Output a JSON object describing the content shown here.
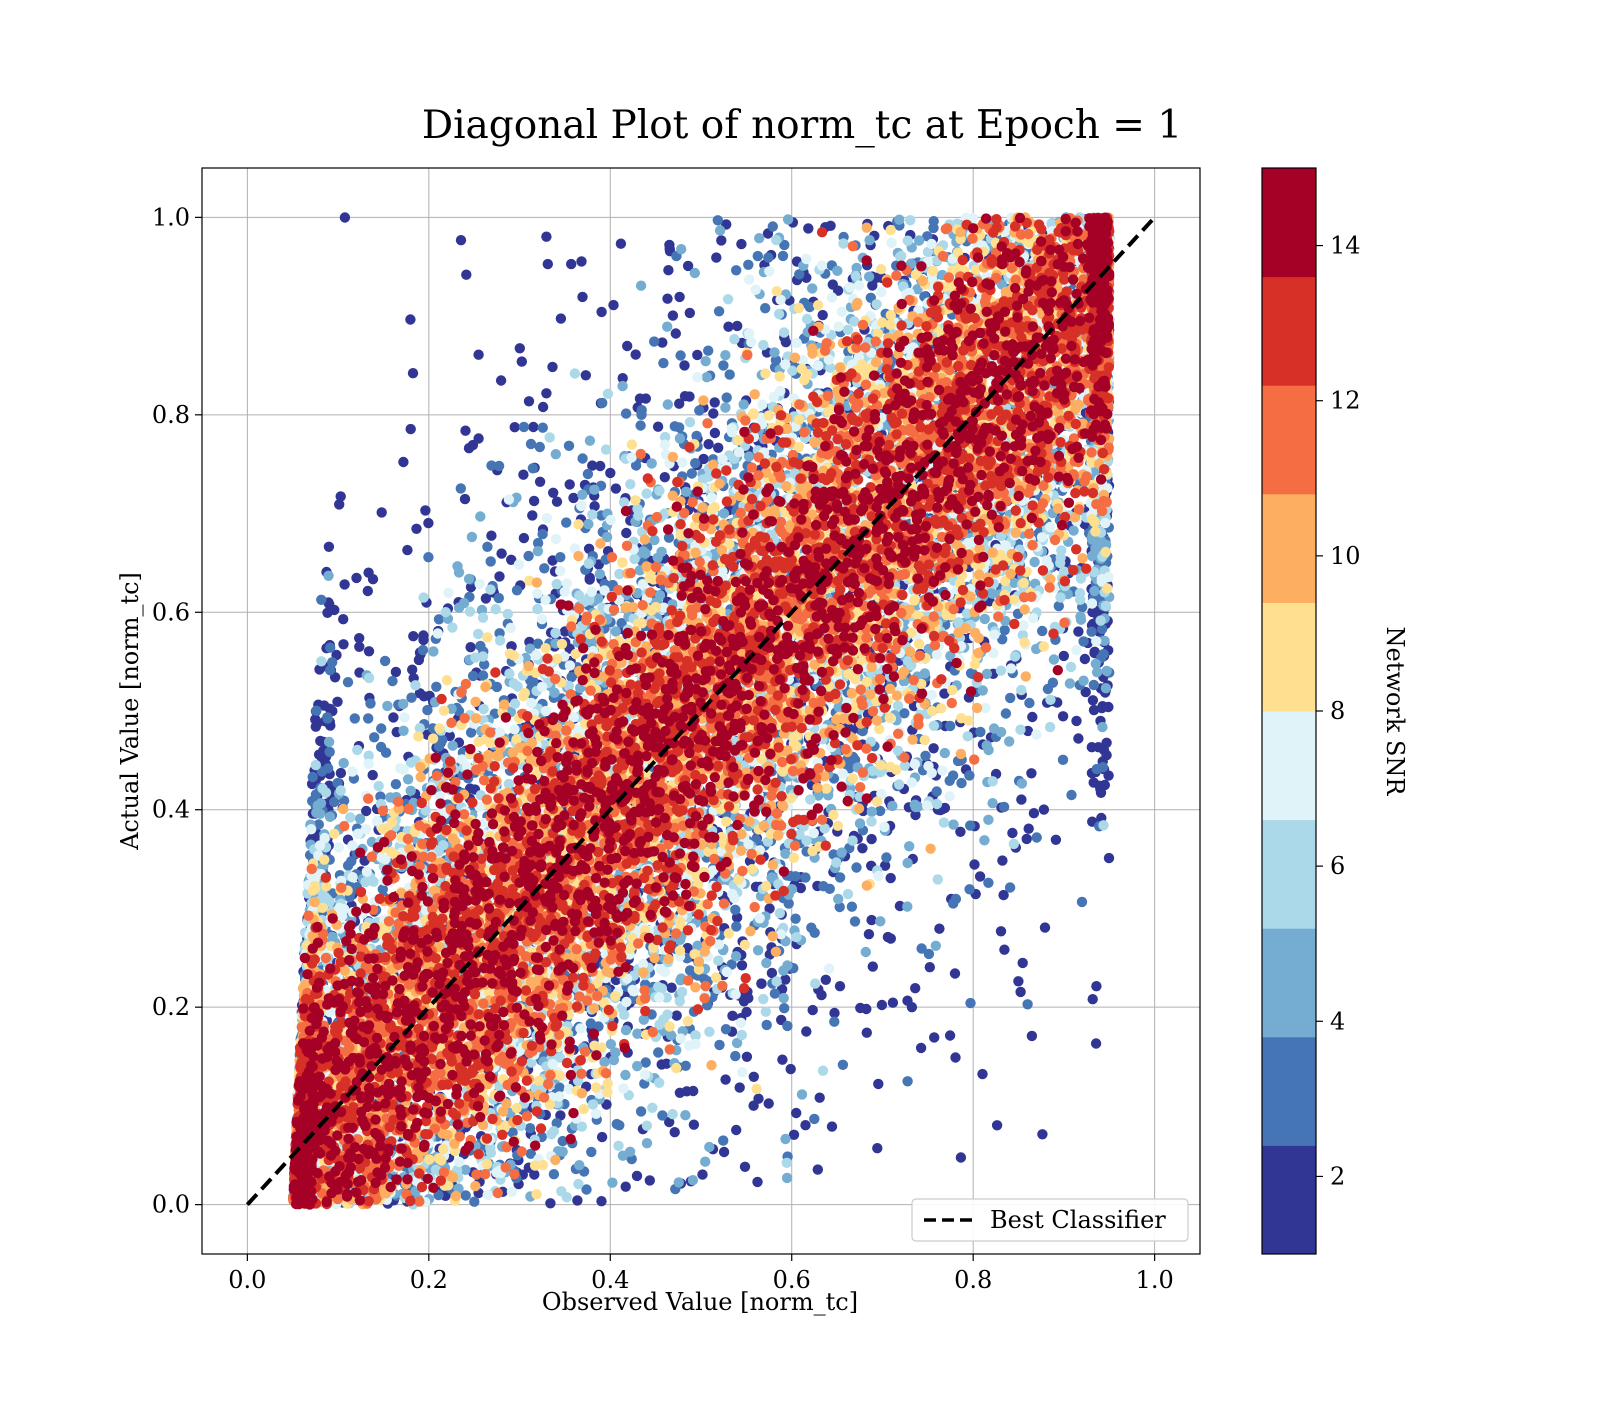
{
  "chart_data": {
    "type": "scatter",
    "title": "Diagonal Plot of norm_tc at Epoch = 1",
    "xlabel": "Observed Value [norm_tc]",
    "ylabel": "Actual Value [norm_tc]",
    "xlim": [
      -0.05,
      1.05
    ],
    "ylim": [
      -0.05,
      1.05
    ],
    "xticks": [
      "0.0",
      "0.2",
      "0.4",
      "0.6",
      "0.8",
      "1.0"
    ],
    "yticks": [
      "0.0",
      "0.2",
      "0.4",
      "0.6",
      "0.8",
      "1.0"
    ],
    "grid": true,
    "legend": {
      "placement": "lower-right",
      "entries": [
        "Best Classifier"
      ]
    },
    "reference_line": {
      "name": "Best Classifier",
      "style": "dashed",
      "color": "#000000",
      "x": [
        0,
        1
      ],
      "y": [
        0,
        1
      ]
    },
    "colorbar": {
      "label": "Network SNR",
      "range": [
        1,
        15
      ],
      "ticks": [
        "2",
        "4",
        "6",
        "8",
        "10",
        "12",
        "14"
      ],
      "colors": [
        "#313695",
        "#4575b4",
        "#74add1",
        "#abd9e9",
        "#e0f3f8",
        "#fee090",
        "#fdae61",
        "#f46d43",
        "#d73027",
        "#a50026"
      ]
    },
    "scatter_description": {
      "x_range_at_y0": [
        0.05,
        0.95
      ],
      "x_range_at_y1": [
        0.1,
        0.95
      ],
      "high_snr_band_near_diagonal": true,
      "low_snr_points_far_from_diagonal": true,
      "approx_points": 100000
    }
  }
}
